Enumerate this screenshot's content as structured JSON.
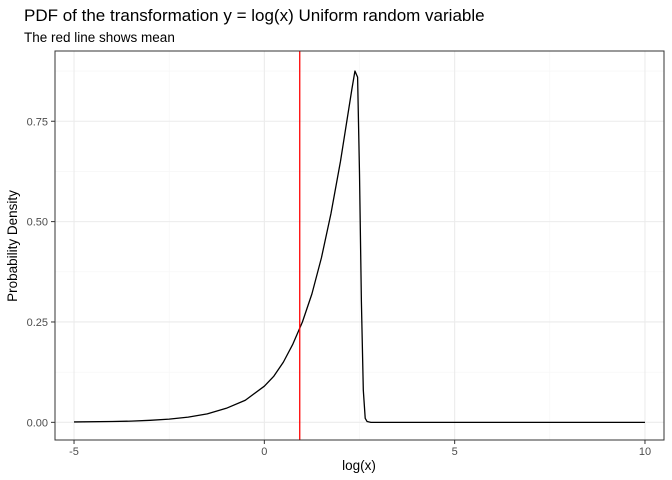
{
  "chart_data": {
    "type": "line",
    "title": "PDF of the transformation y = log(x) Uniform random variable",
    "subtitle": "The red line shows mean",
    "xlabel": "log(x)",
    "ylabel": "Probability Density",
    "xlim": [
      -5.5,
      10.5
    ],
    "ylim": [
      -0.044,
      0.925
    ],
    "x_ticks": [
      -5,
      0,
      5,
      10
    ],
    "x_tick_labels": [
      "-5",
      "0",
      "5",
      "10"
    ],
    "y_ticks": [
      0.0,
      0.25,
      0.5,
      0.75
    ],
    "y_tick_labels": [
      "0.00",
      "0.25",
      "0.50",
      "0.75"
    ],
    "grid": true,
    "series": [
      {
        "color": "#000000",
        "x": [
          -5,
          -4,
          -3.5,
          -3,
          -2.5,
          -2,
          -1.5,
          -1,
          -0.5,
          0,
          0.25,
          0.5,
          0.75,
          1,
          1.25,
          1.5,
          1.75,
          2,
          2.15,
          2.3,
          2.38,
          2.45,
          2.5,
          2.55,
          2.6,
          2.65,
          2.7,
          2.8,
          3,
          4,
          6,
          8,
          10
        ],
        "y": [
          0.001,
          0.002,
          0.003,
          0.005,
          0.008,
          0.013,
          0.021,
          0.035,
          0.055,
          0.09,
          0.115,
          0.15,
          0.195,
          0.25,
          0.32,
          0.41,
          0.52,
          0.65,
          0.74,
          0.83,
          0.875,
          0.86,
          0.62,
          0.3,
          0.08,
          0.01,
          0.002,
          0.0,
          0.0,
          0.0,
          0.0,
          0.0,
          0.0
        ]
      }
    ],
    "mean_line": {
      "x": 0.93,
      "color": "#ff0000"
    }
  },
  "colors": {
    "panel_border": "#333333",
    "grid_major": "#ebebeb",
    "grid_minor": "#f5f5f5",
    "tick_color": "#333333",
    "curve": "#000000",
    "mean": "#ff0000"
  }
}
